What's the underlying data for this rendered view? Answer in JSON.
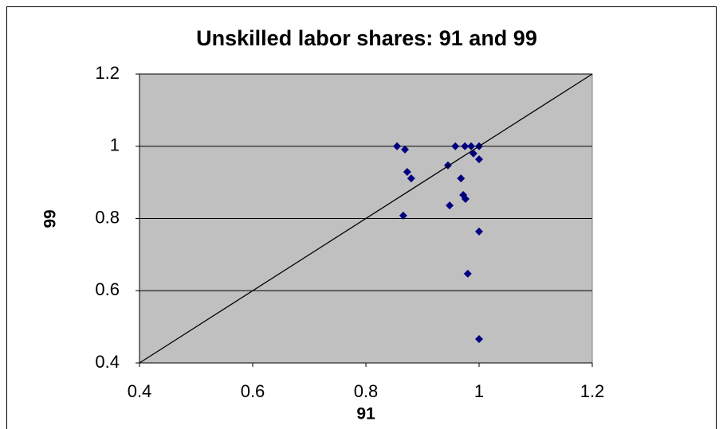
{
  "chart_data": {
    "type": "scatter",
    "title": "Unskilled labor shares: 91 and 99",
    "x_label": "91",
    "y_label": "99",
    "xlim": [
      0.4,
      1.2
    ],
    "xticks": [
      0.4,
      0.6,
      0.8,
      1,
      1.2
    ],
    "ylim": [
      0.4,
      1.2
    ],
    "yticks": [
      0.4,
      0.6,
      0.8,
      1,
      1.2
    ],
    "grid": true,
    "background": "#c0c0c0",
    "series": [
      {
        "color": "#000080",
        "x": [
          0.855,
          0.869,
          0.873,
          0.88,
          0.866,
          0.945,
          0.948,
          0.958,
          0.968,
          0.972,
          0.976,
          0.975,
          0.986,
          0.99,
          1.0,
          1.0,
          1.0,
          0.98,
          1.0
        ],
        "values": [
          1.0,
          0.991,
          0.929,
          0.911,
          0.808,
          0.947,
          0.836,
          1.0,
          0.911,
          0.865,
          0.854,
          1.0,
          1.0,
          0.98,
          1.0,
          0.964,
          0.764,
          0.647,
          0.466
        ]
      },
      {
        "type": "line",
        "color": "#000000",
        "x": [
          0.4,
          1.2
        ],
        "values": [
          0.4,
          1.2
        ]
      }
    ]
  }
}
